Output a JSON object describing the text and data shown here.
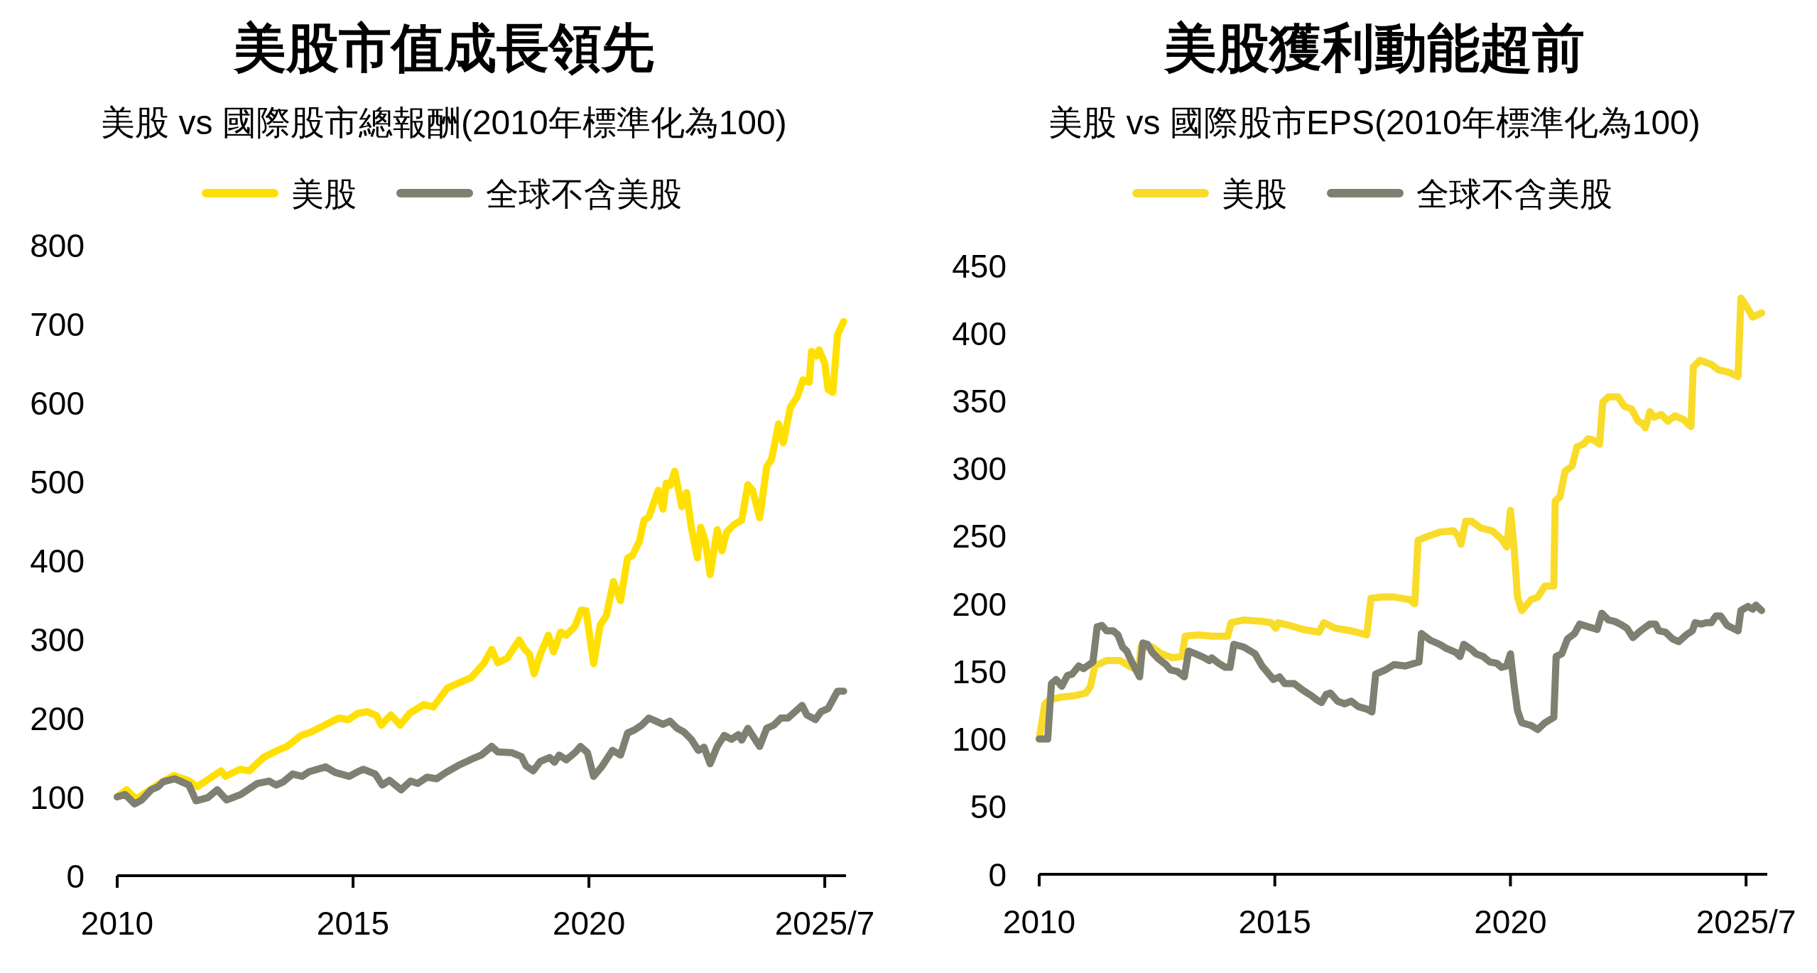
{
  "chart_data": [
    {
      "type": "line",
      "title": "美股市值成長領先",
      "subtitle": "美股 vs 國際股市總報酬(2010年標準化為100)",
      "legend": "top",
      "xlim": [
        2010,
        2025.45
      ],
      "xticks": [
        2010,
        2015,
        2020,
        {
          "value": 2025,
          "label": "2025/7"
        }
      ],
      "ylim": [
        0,
        800
      ],
      "yticks": [
        0,
        100,
        200,
        300,
        400,
        500,
        600,
        700,
        800
      ],
      "series": [
        {
          "name": "美股",
          "color": "#ffe000",
          "x": [
            2010.0,
            2010.2,
            2010.4,
            2010.6,
            2010.9,
            2011.2,
            2011.5,
            2011.7,
            2011.8,
            2012.2,
            2012.3,
            2012.6,
            2012.8,
            2013.1,
            2013.4,
            2013.6,
            2013.9,
            2014.1,
            2014.4,
            2014.7,
            2014.9,
            2015.1,
            2015.3,
            2015.5,
            2015.6,
            2015.8,
            2016.0,
            2016.2,
            2016.5,
            2016.7,
            2017.0,
            2017.3,
            2017.5,
            2017.77,
            2017.94,
            2018.07,
            2018.27,
            2018.52,
            2018.64,
            2018.74,
            2018.84,
            2018.97,
            2019.14,
            2019.25,
            2019.4,
            2019.52,
            2019.7,
            2019.84,
            2019.94,
            2020.1,
            2020.24,
            2020.37,
            2020.52,
            2020.67,
            2020.82,
            2020.92,
            2021.07,
            2021.17,
            2021.27,
            2021.47,
            2021.57,
            2021.64,
            2021.72,
            2021.82,
            2021.97,
            2022.07,
            2022.17,
            2022.3,
            2022.37,
            2022.47,
            2022.57,
            2022.72,
            2022.82,
            2022.92,
            2023.07,
            2023.24,
            2023.37,
            2023.47,
            2023.62,
            2023.77,
            2023.87,
            2024.02,
            2024.12,
            2024.27,
            2024.42,
            2024.54,
            2024.67,
            2024.72,
            2024.82,
            2024.88,
            2025.0,
            2025.07,
            2025.17,
            2025.27,
            2025.4
          ],
          "values": [
            100,
            109,
            97,
            105,
            117,
            127,
            121,
            113,
            117,
            133,
            126,
            135,
            133,
            150,
            159,
            164,
            178,
            182,
            191,
            200,
            198,
            206,
            208,
            203,
            191,
            204,
            191,
            206,
            217,
            214,
            238,
            246,
            251,
            269,
            287,
            270,
            276,
            299,
            287,
            281,
            256,
            281,
            305,
            284,
            309,
            305,
            316,
            337,
            336,
            269,
            318,
            330,
            373,
            349,
            403,
            406,
            424,
            451,
            455,
            489,
            465,
            498,
            495,
            513,
            468,
            486,
            442,
            403,
            442,
            424,
            382,
            439,
            412,
            436,
            445,
            451,
            496,
            489,
            454,
            519,
            528,
            573,
            549,
            594,
            608,
            629,
            626,
            665,
            659,
            667,
            650,
            617,
            613,
            686,
            703
          ]
        },
        {
          "name": "全球不含美股",
          "color": "#7f7f72",
          "x": [
            2010.0,
            2010.17,
            2010.37,
            2010.52,
            2010.72,
            2010.87,
            2010.97,
            2011.22,
            2011.52,
            2011.67,
            2011.92,
            2012.12,
            2012.32,
            2012.62,
            2012.97,
            2013.22,
            2013.37,
            2013.52,
            2013.72,
            2013.92,
            2014.07,
            2014.42,
            2014.62,
            2014.92,
            2015.07,
            2015.22,
            2015.47,
            2015.62,
            2015.77,
            2016.02,
            2016.22,
            2016.37,
            2016.57,
            2016.77,
            2016.97,
            2017.27,
            2017.52,
            2017.72,
            2017.94,
            2018.07,
            2018.37,
            2018.57,
            2018.67,
            2018.82,
            2018.97,
            2019.17,
            2019.27,
            2019.37,
            2019.52,
            2019.72,
            2019.82,
            2019.97,
            2020.1,
            2020.27,
            2020.5,
            2020.67,
            2020.82,
            2020.97,
            2021.12,
            2021.27,
            2021.42,
            2021.57,
            2021.72,
            2021.87,
            2022.02,
            2022.17,
            2022.32,
            2022.44,
            2022.57,
            2022.72,
            2022.87,
            2023.02,
            2023.17,
            2023.24,
            2023.37,
            2023.62,
            2023.77,
            2023.92,
            2024.07,
            2024.22,
            2024.37,
            2024.52,
            2024.62,
            2024.8,
            2024.92,
            2025.07,
            2025.27,
            2025.4
          ],
          "values": [
            100,
            103,
            91,
            96,
            109,
            113,
            119,
            123,
            115,
            95,
            99,
            109,
            96,
            103,
            117,
            120,
            115,
            119,
            129,
            126,
            132,
            138,
            131,
            126,
            131,
            135,
            129,
            115,
            121,
            109,
            120,
            117,
            125,
            123,
            131,
            141,
            148,
            153,
            164,
            157,
            156,
            151,
            139,
            133,
            145,
            150,
            144,
            153,
            147,
            157,
            164,
            156,
            126,
            138,
            159,
            153,
            181,
            185,
            191,
            200,
            196,
            192,
            196,
            187,
            182,
            173,
            159,
            163,
            142,
            164,
            178,
            173,
            179,
            172,
            187,
            164,
            187,
            191,
            200,
            200,
            208,
            216,
            204,
            198,
            208,
            212,
            234,
            234
          ]
        }
      ]
    },
    {
      "type": "line",
      "title": "美股獲利動能超前",
      "subtitle": "美股 vs 國際股市EPS(2010年標準化為100)",
      "legend": "top",
      "xlim": [
        2010,
        2025.45
      ],
      "xticks": [
        2010,
        2015,
        2020,
        {
          "value": 2025,
          "label": "2025/7"
        }
      ],
      "ylim": [
        0,
        450
      ],
      "yticks": [
        0,
        50,
        100,
        150,
        200,
        250,
        300,
        350,
        400,
        450
      ],
      "series": [
        {
          "name": "美股",
          "color": "#f9dc2a",
          "x": [
            2010.0,
            2010.12,
            2010.21,
            2010.46,
            2010.75,
            2010.99,
            2011.09,
            2011.18,
            2011.43,
            2011.72,
            2011.96,
            2012.11,
            2012.16,
            2012.4,
            2012.59,
            2012.83,
            2013.03,
            2013.1,
            2013.37,
            2013.66,
            2014.0,
            2014.07,
            2014.34,
            2014.73,
            2014.92,
            2015.02,
            2015.07,
            2015.31,
            2015.6,
            2015.94,
            2016.04,
            2016.28,
            2016.62,
            2016.95,
            2017.04,
            2017.29,
            2017.53,
            2017.87,
            2017.97,
            2018.04,
            2018.26,
            2018.5,
            2018.79,
            2018.89,
            2018.95,
            2019.05,
            2019.18,
            2019.37,
            2019.61,
            2019.81,
            2019.92,
            2020.0,
            2020.08,
            2020.15,
            2020.24,
            2020.44,
            2020.58,
            2020.73,
            2020.92,
            2020.95,
            2021.05,
            2021.16,
            2021.31,
            2021.41,
            2021.55,
            2021.65,
            2021.76,
            2021.89,
            2021.96,
            2022.08,
            2022.28,
            2022.42,
            2022.57,
            2022.71,
            2022.81,
            2022.86,
            2022.96,
            2023.05,
            2023.2,
            2023.34,
            2023.49,
            2023.68,
            2023.83,
            2023.88,
            2024.02,
            2024.26,
            2024.41,
            2024.65,
            2024.83,
            2024.89,
            2024.99,
            2025.14,
            2025.33
          ],
          "values": [
            100,
            126,
            129,
            131,
            132,
            134,
            139,
            154,
            158,
            158,
            153,
            151,
            168,
            168,
            163,
            160,
            161,
            176,
            177,
            176,
            176,
            186,
            188,
            187,
            186,
            182,
            186,
            184,
            181,
            179,
            186,
            182,
            180,
            177,
            204,
            205,
            205,
            203,
            200,
            247,
            250,
            253,
            254,
            250,
            244,
            261,
            261,
            256,
            254,
            248,
            242,
            269,
            240,
            205,
            195,
            203,
            205,
            213,
            213,
            276,
            279,
            298,
            302,
            316,
            318,
            322,
            321,
            318,
            349,
            353,
            353,
            346,
            344,
            335,
            333,
            330,
            342,
            338,
            340,
            335,
            339,
            336,
            331,
            375,
            380,
            377,
            373,
            371,
            368,
            426,
            421,
            412,
            415
          ]
        },
        {
          "name": "全球不含美股",
          "color": "#7f7f72",
          "x": [
            2010.0,
            2010.18,
            2010.26,
            2010.36,
            2010.48,
            2010.6,
            2010.7,
            2010.84,
            2010.94,
            2011.14,
            2011.23,
            2011.33,
            2011.43,
            2011.57,
            2011.67,
            2011.77,
            2011.86,
            2011.91,
            2012.01,
            2012.13,
            2012.2,
            2012.3,
            2012.4,
            2012.54,
            2012.69,
            2012.79,
            2012.93,
            2013.08,
            2013.17,
            2013.32,
            2013.51,
            2013.61,
            2013.66,
            2013.81,
            2013.95,
            2014.05,
            2014.13,
            2014.34,
            2014.58,
            2014.73,
            2014.97,
            2015.1,
            2015.21,
            2015.41,
            2015.6,
            2015.78,
            2015.89,
            2015.99,
            2016.09,
            2016.18,
            2016.33,
            2016.48,
            2016.62,
            2016.77,
            2016.96,
            2017.06,
            2017.14,
            2017.34,
            2017.53,
            2017.77,
            2018.06,
            2018.11,
            2018.3,
            2018.5,
            2018.64,
            2018.84,
            2018.93,
            2019.01,
            2019.18,
            2019.27,
            2019.42,
            2019.56,
            2019.71,
            2019.81,
            2019.92,
            2020.0,
            2020.08,
            2020.15,
            2020.24,
            2020.44,
            2020.58,
            2020.73,
            2020.92,
            2020.97,
            2021.09,
            2021.21,
            2021.36,
            2021.47,
            2021.65,
            2021.84,
            2021.94,
            2022.08,
            2022.21,
            2022.33,
            2022.47,
            2022.6,
            2022.76,
            2022.96,
            2023.08,
            2023.15,
            2023.29,
            2023.44,
            2023.57,
            2023.73,
            2023.86,
            2023.92,
            2024.05,
            2024.15,
            2024.26,
            2024.36,
            2024.46,
            2024.6,
            2024.83,
            2024.89,
            2025.04,
            2025.14,
            2025.21,
            2025.33
          ],
          "values": [
            100,
            100,
            141,
            144,
            139,
            147,
            148,
            154,
            152,
            157,
            183,
            184,
            180,
            180,
            177,
            168,
            165,
            161,
            154,
            146,
            171,
            170,
            164,
            159,
            155,
            151,
            150,
            146,
            165,
            163,
            160,
            158,
            160,
            156,
            153,
            153,
            170,
            168,
            163,
            154,
            144,
            146,
            141,
            141,
            136,
            132,
            129,
            127,
            133,
            134,
            128,
            126,
            128,
            124,
            122,
            120,
            148,
            151,
            155,
            154,
            157,
            178,
            173,
            170,
            167,
            164,
            161,
            170,
            166,
            163,
            161,
            157,
            156,
            153,
            154,
            163,
            139,
            121,
            112,
            110,
            107,
            112,
            116,
            161,
            163,
            174,
            178,
            185,
            183,
            181,
            193,
            188,
            187,
            185,
            182,
            175,
            180,
            185,
            185,
            180,
            179,
            174,
            172,
            177,
            180,
            186,
            185,
            186,
            186,
            191,
            191,
            184,
            180,
            195,
            198,
            196,
            199,
            195
          ]
        }
      ]
    }
  ]
}
